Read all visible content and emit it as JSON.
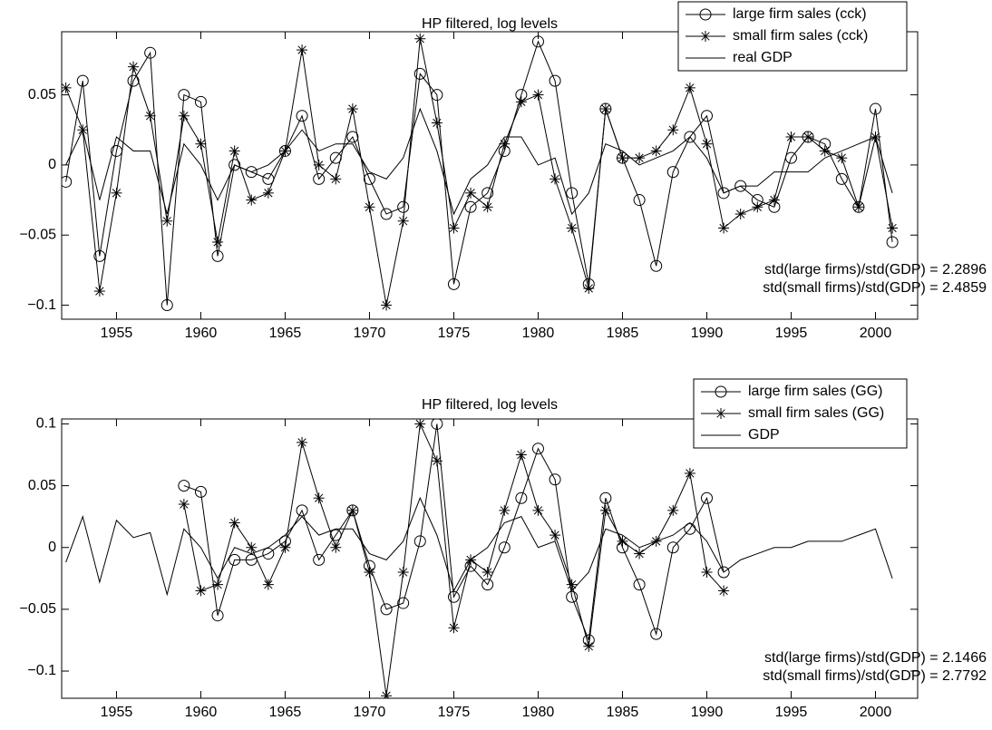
{
  "chart_data": [
    {
      "type": "line",
      "title": "HP filtered, log levels",
      "x": [
        1952,
        1953,
        1954,
        1955,
        1956,
        1957,
        1958,
        1959,
        1960,
        1961,
        1962,
        1963,
        1964,
        1965,
        1966,
        1967,
        1968,
        1969,
        1970,
        1971,
        1972,
        1973,
        1974,
        1975,
        1976,
        1977,
        1978,
        1979,
        1980,
        1981,
        1982,
        1983,
        1984,
        1985,
        1986,
        1987,
        1988,
        1989,
        1990,
        1991,
        1992,
        1993,
        1994,
        1995,
        1996,
        1997,
        1998,
        1999,
        2000,
        2001
      ],
      "series": [
        {
          "name": "large firm sales (cck)",
          "color": "#000000",
          "marker": "o",
          "values": [
            -0.012,
            0.06,
            -0.065,
            0.01,
            0.06,
            0.08,
            -0.1,
            0.05,
            0.045,
            -0.065,
            0.0,
            -0.005,
            -0.01,
            0.01,
            0.035,
            -0.01,
            0.005,
            0.02,
            -0.01,
            -0.035,
            -0.03,
            0.065,
            0.05,
            -0.085,
            -0.03,
            -0.02,
            0.01,
            0.05,
            0.088,
            0.06,
            -0.02,
            -0.085,
            0.04,
            0.005,
            -0.025,
            -0.072,
            -0.005,
            0.02,
            0.035,
            -0.02,
            -0.015,
            -0.025,
            -0.03,
            0.005,
            0.02,
            0.015,
            -0.01,
            -0.03,
            0.04,
            -0.055
          ]
        },
        {
          "name": "small firm sales (cck)",
          "color": "#000000",
          "marker": "*",
          "values": [
            0.055,
            0.025,
            -0.09,
            -0.02,
            0.07,
            0.035,
            -0.04,
            0.035,
            0.015,
            -0.055,
            0.01,
            -0.025,
            -0.02,
            0.01,
            0.082,
            0.0,
            -0.01,
            0.04,
            -0.03,
            -0.1,
            -0.04,
            0.09,
            0.03,
            -0.045,
            -0.02,
            -0.03,
            0.015,
            0.045,
            0.05,
            -0.01,
            -0.045,
            -0.088,
            0.04,
            0.005,
            0.005,
            0.01,
            0.025,
            0.055,
            0.015,
            -0.045,
            -0.035,
            -0.03,
            -0.025,
            0.02,
            0.02,
            0.01,
            0.005,
            -0.03,
            0.02,
            -0.045
          ]
        },
        {
          "name": "real GDP",
          "color": "#000000",
          "marker": "none",
          "values": [
            0.0,
            0.025,
            -0.025,
            0.02,
            0.01,
            0.01,
            -0.035,
            0.015,
            0.0,
            -0.025,
            0.0,
            -0.005,
            0.0,
            0.01,
            0.025,
            0.01,
            0.015,
            0.015,
            -0.005,
            -0.01,
            0.005,
            0.04,
            0.01,
            -0.035,
            -0.01,
            0.0,
            0.02,
            0.02,
            0.0,
            0.005,
            -0.035,
            -0.02,
            0.015,
            0.01,
            0.0,
            0.005,
            0.01,
            0.02,
            0.005,
            -0.02,
            -0.015,
            -0.015,
            -0.005,
            -0.005,
            -0.005,
            0.005,
            0.01,
            0.015,
            0.02,
            -0.02
          ]
        }
      ],
      "xlim": [
        1951.75,
        2002.5
      ],
      "xticks": [
        1955,
        1960,
        1965,
        1970,
        1975,
        1980,
        1985,
        1990,
        1995,
        2000
      ],
      "ylim": [
        -0.11,
        0.095
      ],
      "yticks": [
        {
          "value": -0.1,
          "label": "−0.1"
        },
        {
          "value": -0.05,
          "label": "−0.05"
        },
        0,
        0.05
      ],
      "legend": "upper right",
      "annotations": [
        "std(large firms)/std(GDP) = 2.2896",
        "std(small firms)/std(GDP) = 2.4859"
      ]
    },
    {
      "type": "line",
      "title": "HP filtered, log levels",
      "x": [
        1952,
        1953,
        1954,
        1955,
        1956,
        1957,
        1958,
        1959,
        1960,
        1961,
        1962,
        1963,
        1964,
        1965,
        1966,
        1967,
        1968,
        1969,
        1970,
        1971,
        1972,
        1973,
        1974,
        1975,
        1976,
        1977,
        1978,
        1979,
        1980,
        1981,
        1982,
        1983,
        1984,
        1985,
        1986,
        1987,
        1988,
        1989,
        1990,
        1991,
        1992,
        1993,
        1994,
        1995,
        1996,
        1997,
        1998,
        1999,
        2000,
        2001
      ],
      "series": [
        {
          "name": "large firm sales (GG)",
          "color": "#000000",
          "marker": "o",
          "values": [
            null,
            null,
            null,
            null,
            null,
            null,
            null,
            0.05,
            0.045,
            -0.055,
            -0.01,
            -0.01,
            -0.005,
            0.005,
            0.03,
            -0.01,
            0.01,
            0.03,
            -0.015,
            -0.05,
            -0.045,
            0.005,
            0.1,
            -0.04,
            -0.015,
            -0.03,
            0.0,
            0.04,
            0.08,
            0.055,
            -0.04,
            -0.075,
            0.04,
            0.0,
            -0.03,
            -0.07,
            0.0,
            0.015,
            0.04,
            -0.02,
            null,
            null,
            null,
            null,
            null,
            null,
            null,
            null,
            null,
            null
          ]
        },
        {
          "name": "small firm sales (GG)",
          "color": "#000000",
          "marker": "*",
          "values": [
            null,
            null,
            null,
            null,
            null,
            null,
            null,
            0.035,
            -0.035,
            -0.03,
            0.02,
            0.0,
            -0.03,
            0.0,
            0.085,
            0.04,
            0.0,
            0.03,
            -0.02,
            -0.12,
            -0.02,
            0.1,
            0.07,
            -0.065,
            -0.01,
            -0.02,
            0.03,
            0.075,
            0.03,
            0.01,
            -0.03,
            -0.08,
            0.03,
            0.005,
            -0.005,
            0.005,
            0.03,
            0.06,
            -0.02,
            -0.035,
            null,
            null,
            null,
            null,
            null,
            null,
            null,
            null,
            null,
            null
          ]
        },
        {
          "name": "GDP",
          "color": "#000000",
          "marker": "none",
          "values": [
            -0.012,
            0.025,
            -0.028,
            0.022,
            0.008,
            0.012,
            -0.038,
            0.015,
            0.0,
            -0.025,
            0.0,
            -0.005,
            0.0,
            0.01,
            0.025,
            0.01,
            0.015,
            0.015,
            -0.005,
            -0.01,
            0.005,
            0.04,
            0.01,
            -0.035,
            -0.01,
            0.0,
            0.02,
            0.025,
            0.0,
            0.005,
            -0.035,
            -0.02,
            0.015,
            0.01,
            0.0,
            0.005,
            0.01,
            0.02,
            0.005,
            -0.02,
            -0.01,
            -0.005,
            0.0,
            0.0,
            0.005,
            0.005,
            0.005,
            0.01,
            0.015,
            -0.025
          ]
        }
      ],
      "xlim": [
        1951.75,
        2002.5
      ],
      "xticks": [
        1955,
        1960,
        1965,
        1970,
        1975,
        1980,
        1985,
        1990,
        1995,
        2000
      ],
      "ylim": [
        -0.122,
        0.104
      ],
      "yticks": [
        {
          "value": -0.1,
          "label": "−0.1"
        },
        {
          "value": -0.05,
          "label": "−0.05"
        },
        0,
        0.05,
        0.1
      ],
      "legend": "upper right",
      "annotations": [
        "std(large firms)/std(GDP) = 2.1466",
        "std(small firms)/std(GDP) = 2.7792"
      ]
    }
  ]
}
